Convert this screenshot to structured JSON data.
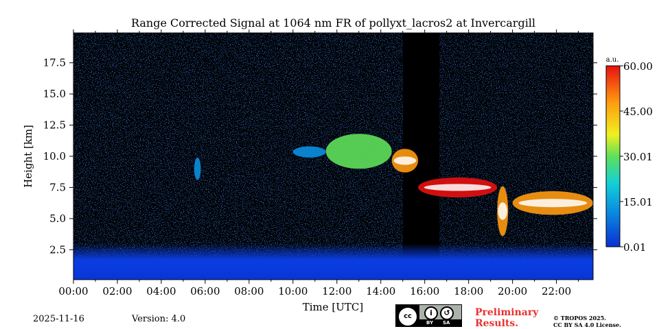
{
  "chart_data": {
    "type": "heatmap",
    "title": "Range Corrected Signal at 1064 nm FR of pollyxt_lacros2 at Invercargill",
    "xlabel": "Time [UTC]",
    "ylabel": "Height [km]",
    "xlim": [
      0,
      23.67
    ],
    "ylim": [
      0.1,
      19.9
    ],
    "x_ticks": [
      0,
      2,
      4,
      6,
      8,
      10,
      12,
      14,
      16,
      18,
      20,
      22
    ],
    "x_tick_labels": [
      "00:00",
      "02:00",
      "04:00",
      "06:00",
      "08:00",
      "10:00",
      "12:00",
      "14:00",
      "16:00",
      "18:00",
      "20:00",
      "22:00"
    ],
    "y_ticks": [
      2.5,
      5.0,
      7.5,
      10.0,
      12.5,
      15.0,
      17.5
    ],
    "y_tick_labels": [
      "2.5",
      "5.0",
      "7.5",
      "10.0",
      "12.5",
      "15.0",
      "17.5"
    ],
    "colorbar": {
      "label": "a.u.",
      "min": 0.01,
      "max": 60.0,
      "ticks": [
        0.01,
        15.01,
        30.01,
        45.0,
        60.0
      ],
      "tick_labels": [
        "0.01",
        "15.01",
        "30.01",
        "45.00",
        "60.00"
      ],
      "colors": [
        "#0a2fd1",
        "#0a8fe0",
        "#12d0d8",
        "#5fe05a",
        "#f0f020",
        "#ff9a10",
        "#e81010"
      ]
    },
    "features": [
      {
        "name": "aerosol boundary layer",
        "time_start": 0.0,
        "time_end": 23.67,
        "height_base": 0.1,
        "height_top": 3.0,
        "signal": 3
      },
      {
        "name": "thin cloud",
        "time_start": 5.5,
        "time_end": 5.8,
        "height_base": 8.1,
        "height_top": 9.9,
        "signal": 12
      },
      {
        "name": "cirrus",
        "time_start": 10.0,
        "time_end": 11.5,
        "height_base": 9.9,
        "height_top": 10.8,
        "signal": 8
      },
      {
        "name": "cirrus",
        "time_start": 11.5,
        "time_end": 14.5,
        "height_base": 9.0,
        "height_top": 11.8,
        "signal": 30
      },
      {
        "name": "cloud",
        "time_start": 14.5,
        "time_end": 15.7,
        "height_base": 8.7,
        "height_top": 10.6,
        "signal": 55
      },
      {
        "name": "cloud layer",
        "time_start": 15.7,
        "time_end": 19.3,
        "height_base": 6.7,
        "height_top": 8.3,
        "signal": 60
      },
      {
        "name": "cloud descending",
        "time_start": 19.3,
        "time_end": 19.8,
        "height_base": 3.6,
        "height_top": 7.6,
        "signal": 50
      },
      {
        "name": "low cloud",
        "time_start": 20.0,
        "time_end": 23.67,
        "height_base": 5.3,
        "height_top": 7.2,
        "signal": 50
      }
    ]
  },
  "footer": {
    "date": "2025-11-16",
    "version": "Version: 4.0",
    "preliminary_line1": "Preliminary",
    "preliminary_line2": "Results.",
    "copyright_line1": "© TROPOS 2025.",
    "copyright_line2": "CC BY SA 4.0 License.",
    "license_badge": {
      "cc": "cc",
      "by": "BY",
      "sa": "SA"
    }
  },
  "colors": {
    "no_signal": "#000000",
    "boundary_layer": "#0a3de0",
    "background_noise": "#0a38d6"
  }
}
